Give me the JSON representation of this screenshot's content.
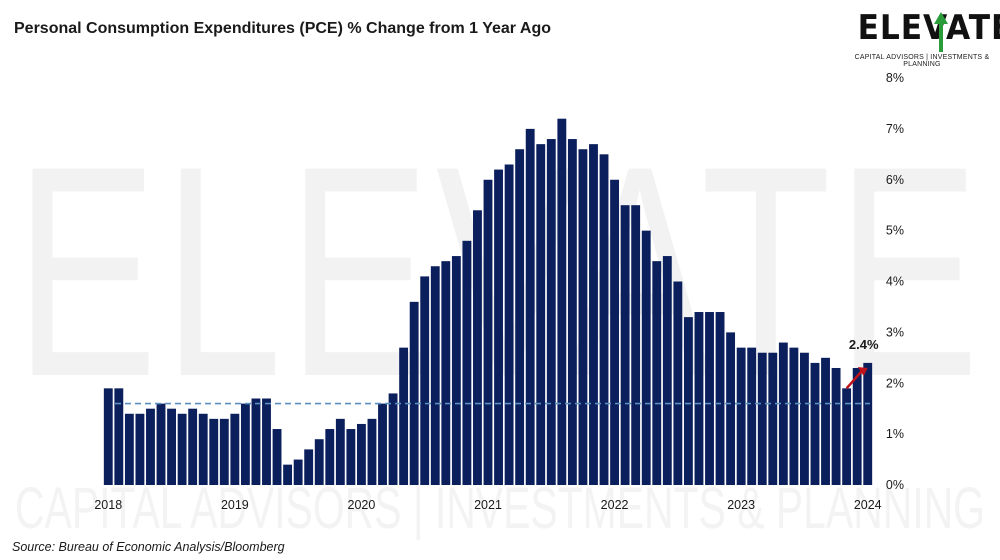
{
  "title": "Personal Consumption Expenditures (PCE) % Change from 1 Year Ago",
  "source": "Source: Bureau of Economic Analysis/Bloomberg",
  "logo": {
    "word": "ELEVATE",
    "tagline": "CAPITAL ADVISORS | INVESTMENTS & PLANNING"
  },
  "colors": {
    "bar": "#0b1f5c",
    "reference_line": "#5b8fbf",
    "trend_arrow": "#c0141c",
    "watermark": "#f2f2f2"
  },
  "chart_data": {
    "type": "bar",
    "title": "Personal Consumption Expenditures (PCE) % Change from 1 Year Ago",
    "xlabel": "",
    "ylabel": "",
    "ylim": [
      0,
      8
    ],
    "yticks": [
      "0%",
      "1%",
      "2%",
      "3%",
      "4%",
      "5%",
      "6%",
      "7%",
      "8%"
    ],
    "y_axis_side": "right",
    "x_tick_labels": [
      "2018",
      "2019",
      "2020",
      "2021",
      "2022",
      "2023",
      "2024"
    ],
    "grid": false,
    "legend": "none",
    "reference_line_value": 1.6,
    "annotation": {
      "text": "2.4%",
      "value": 2.4,
      "position": "last-bar"
    },
    "trend_arrow": {
      "from": 1.9,
      "to": 2.3,
      "position": "last-bars"
    },
    "values": [
      1.9,
      1.9,
      1.4,
      1.4,
      1.5,
      1.6,
      1.5,
      1.4,
      1.5,
      1.4,
      1.3,
      1.3,
      1.4,
      1.6,
      1.7,
      1.7,
      1.1,
      0.4,
      0.5,
      0.7,
      0.9,
      1.1,
      1.3,
      1.1,
      1.2,
      1.3,
      1.6,
      1.8,
      2.7,
      3.6,
      4.1,
      4.3,
      4.4,
      4.5,
      4.8,
      5.4,
      6.0,
      6.2,
      6.3,
      6.6,
      7.0,
      6.7,
      6.8,
      7.2,
      6.8,
      6.6,
      6.7,
      6.5,
      6.0,
      5.5,
      5.5,
      5.0,
      4.4,
      4.5,
      4.0,
      3.3,
      3.4,
      3.4,
      3.4,
      3.0,
      2.7,
      2.7,
      2.6,
      2.6,
      2.8,
      2.7,
      2.6,
      2.4,
      2.5,
      2.3,
      1.9,
      2.3,
      2.4
    ]
  }
}
